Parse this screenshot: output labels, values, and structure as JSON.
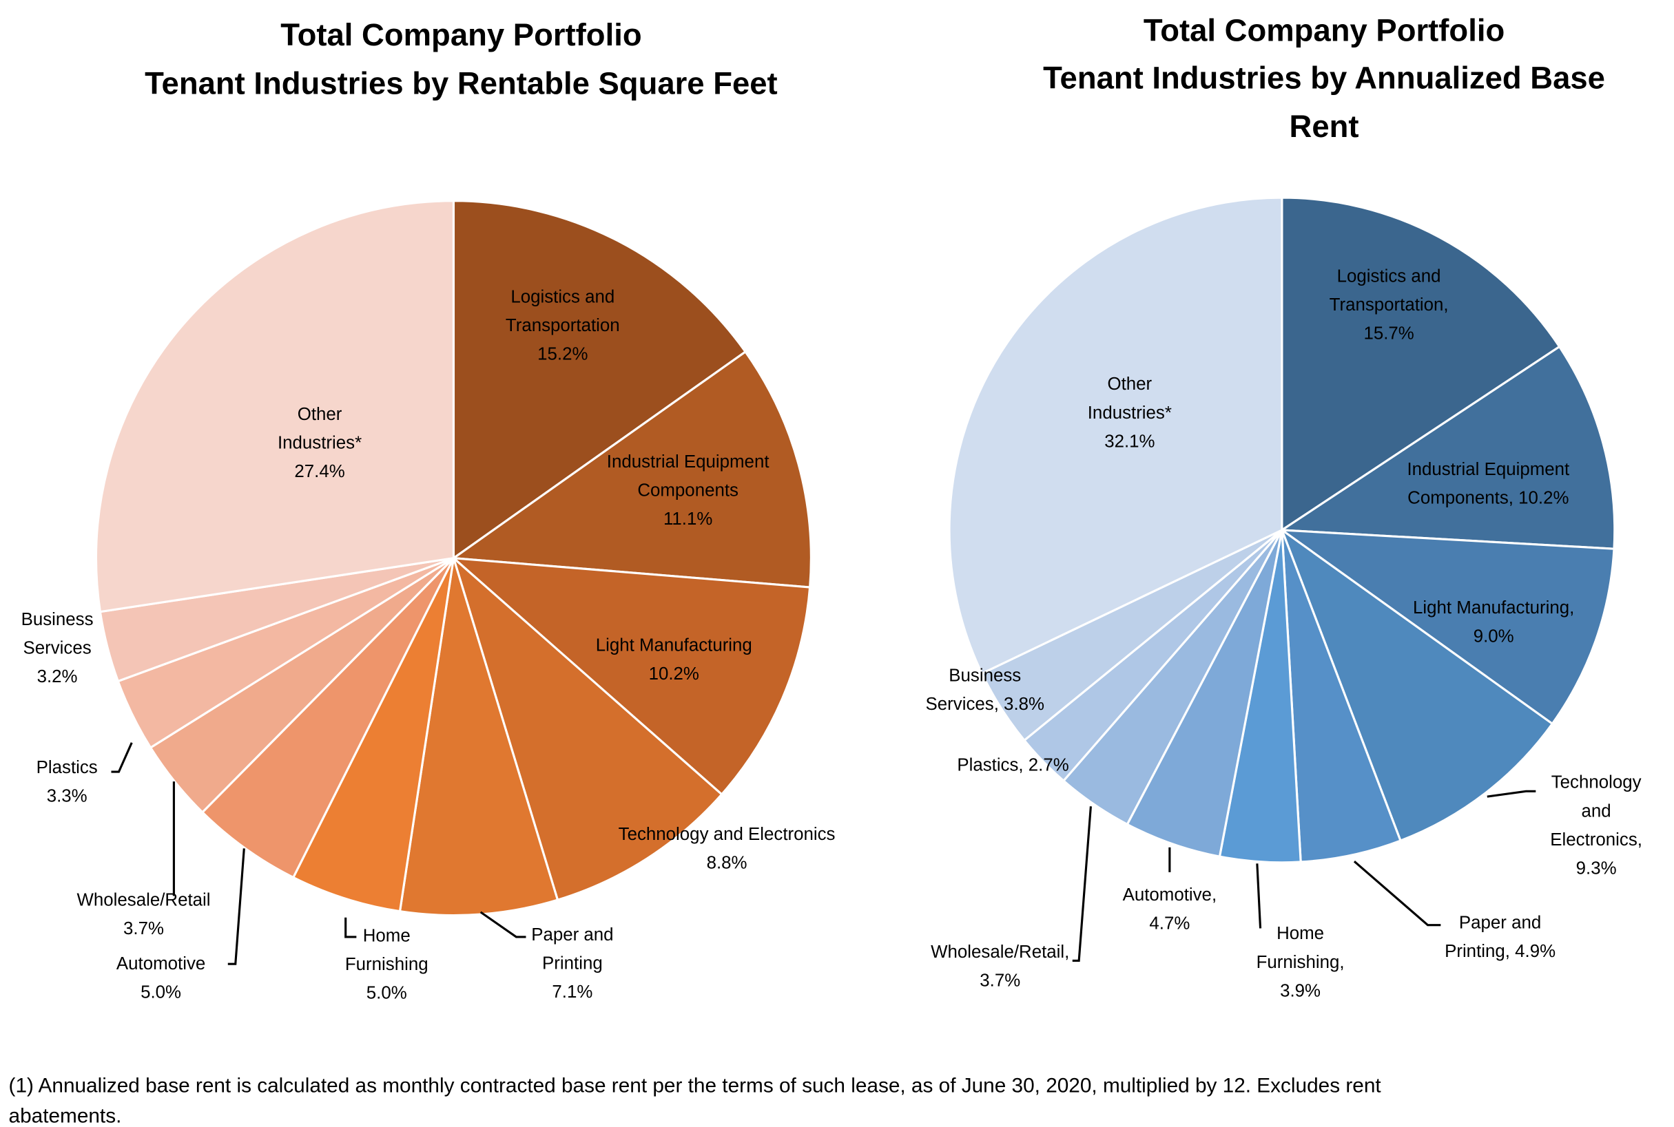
{
  "chart_data": [
    {
      "type": "pie",
      "title": [
        "Total Company Portfolio",
        "Tenant Industries by Rentable Square Feet"
      ],
      "slices": [
        {
          "name": "Logistics and Transportation",
          "value": 15.2,
          "color": "#9C4F1E",
          "label_lines": [
            "Logistics  and",
            "Transportation",
            "15.2%"
          ]
        },
        {
          "name": "Industrial Equipment Components",
          "value": 11.1,
          "color": "#B15B23",
          "label_lines": [
            "Industrial  Equipment",
            "Components",
            "11.1%"
          ]
        },
        {
          "name": "Light Manufacturing",
          "value": 10.2,
          "color": "#C46428",
          "label_lines": [
            "Light Manufacturing",
            "10.2%"
          ]
        },
        {
          "name": "Technology and Electronics",
          "value": 8.8,
          "color": "#D46F2C",
          "label_lines": [
            "Technology  and Electronics",
            "8.8%"
          ]
        },
        {
          "name": "Paper and Printing",
          "value": 7.1,
          "color": "#E07830",
          "label_lines": [
            "Paper and",
            "Printing",
            "7.1%"
          ]
        },
        {
          "name": "Home Furnishing",
          "value": 5.0,
          "color": "#EC7F33",
          "label_lines": [
            "Home",
            "Furnishing",
            "5.0%"
          ]
        },
        {
          "name": "Automotive",
          "value": 5.0,
          "color": "#EE956B",
          "label_lines": [
            "Automotive",
            "5.0%"
          ]
        },
        {
          "name": "Wholesale/Retail",
          "value": 3.7,
          "color": "#F0AA8C",
          "label_lines": [
            "Wholesale/Retail",
            "3.7%"
          ]
        },
        {
          "name": "Plastics",
          "value": 3.3,
          "color": "#F3B8A2",
          "label_lines": [
            "Plastics",
            "3.3%"
          ]
        },
        {
          "name": "Business Services",
          "value": 3.2,
          "color": "#F4C5B6",
          "label_lines": [
            "Business",
            "Services",
            "3.2%"
          ]
        },
        {
          "name": "Other Industries*",
          "value": 27.4,
          "color": "#F6D6CC",
          "label_lines": [
            "Other",
            "Industries*",
            "27.4%"
          ]
        }
      ]
    },
    {
      "type": "pie",
      "title": [
        "Total Company Portfolio",
        "Tenant Industries by Annualized Base",
        "Rent"
      ],
      "slices": [
        {
          "name": "Logistics and Transportation",
          "value": 15.7,
          "color": "#3B668E",
          "label_lines": [
            "Logistics  and",
            "Transportation,",
            "15.7%"
          ]
        },
        {
          "name": "Industrial Equipment Components",
          "value": 10.2,
          "color": "#41709C",
          "label_lines": [
            "Industrial  Equipment",
            "Components,  10.2%"
          ]
        },
        {
          "name": "Light Manufacturing",
          "value": 9.0,
          "color": "#4A7EB0",
          "label_lines": [
            "Light Manufacturing,",
            "9.0%"
          ]
        },
        {
          "name": "Technology and Electronics",
          "value": 9.3,
          "color": "#4F89BD",
          "label_lines": [
            "Technology",
            "and",
            "Electronics,",
            "9.3%"
          ]
        },
        {
          "name": "Paper and Printing",
          "value": 4.9,
          "color": "#5690C8",
          "label_lines": [
            "Paper and",
            "Printing,  4.9%"
          ]
        },
        {
          "name": "Home Furnishing",
          "value": 3.9,
          "color": "#5B9BD5",
          "label_lines": [
            "Home",
            "Furnishing,",
            "3.9%"
          ]
        },
        {
          "name": "Automotive",
          "value": 4.7,
          "color": "#7EA9D8",
          "label_lines": [
            "Automotive,",
            "4.7%"
          ]
        },
        {
          "name": "Wholesale/Retail",
          "value": 3.7,
          "color": "#9ABAE0",
          "label_lines": [
            "Wholesale/Retail,",
            "3.7%"
          ]
        },
        {
          "name": "Plastics",
          "value": 2.7,
          "color": "#AFC7E6",
          "label_lines": [
            "Plastics,  2.7%"
          ]
        },
        {
          "name": "Business Services",
          "value": 3.8,
          "color": "#BDD0E9",
          "label_lines": [
            "Business",
            "Services, 3.8%"
          ]
        },
        {
          "name": "Other Industries*",
          "value": 32.1,
          "color": "#D0DDEF",
          "label_lines": [
            "Other",
            "Industries*",
            "32.1%"
          ]
        }
      ]
    }
  ],
  "footnote": [
    "(1) Annualized base rent is calculated as monthly contracted base rent per the terms of such lease, as of June 30, 2020, multiplied by 12. Excludes rent",
    "abatements."
  ]
}
